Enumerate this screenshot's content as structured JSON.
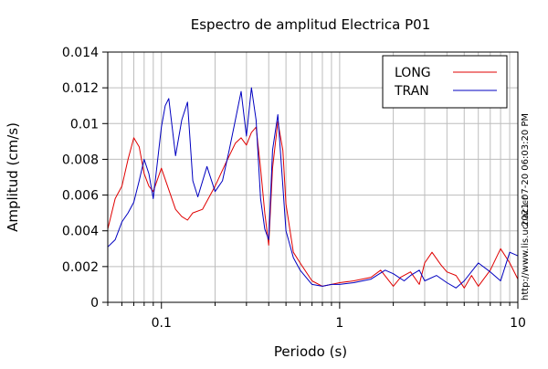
{
  "chart_data": {
    "type": "line",
    "title": "Espectro de amplitud Electrica P01",
    "xlabel": "Periodo (s)",
    "ylabel": "Amplitud (cm/s)",
    "x_scale": "log",
    "xlim": [
      0.05,
      10
    ],
    "ylim": [
      0,
      0.014
    ],
    "x_tick_labels": [
      "0.1",
      "1",
      "10"
    ],
    "y_tick_labels": [
      "0",
      "0.002",
      "0.004",
      "0.006",
      "0.008",
      "0.01",
      "0.012",
      "0.014"
    ],
    "grid": true,
    "legend_position": "top-right",
    "side_texts": [
      "2021-07-20 06:03:20 PM",
      "http://www.lis.ucr.ac.cr"
    ],
    "series": [
      {
        "name": "LONG",
        "color": "#e00000",
        "x": [
          0.05,
          0.055,
          0.06,
          0.065,
          0.07,
          0.075,
          0.08,
          0.085,
          0.09,
          0.1,
          0.11,
          0.12,
          0.13,
          0.14,
          0.15,
          0.17,
          0.2,
          0.23,
          0.26,
          0.28,
          0.3,
          0.32,
          0.34,
          0.36,
          0.38,
          0.4,
          0.42,
          0.45,
          0.48,
          0.5,
          0.55,
          0.6,
          0.7,
          0.8,
          0.9,
          1.0,
          1.2,
          1.5,
          1.7,
          2.0,
          2.2,
          2.5,
          2.8,
          3.0,
          3.3,
          3.7,
          4.0,
          4.5,
          5.0,
          5.5,
          6.0,
          7.0,
          8.0,
          9.0,
          10.0
        ],
        "y": [
          0.0041,
          0.0058,
          0.0065,
          0.008,
          0.0092,
          0.0087,
          0.0072,
          0.0065,
          0.0062,
          0.0075,
          0.0063,
          0.0052,
          0.0048,
          0.0046,
          0.005,
          0.0052,
          0.0065,
          0.0078,
          0.0089,
          0.0092,
          0.0088,
          0.0095,
          0.0098,
          0.0075,
          0.005,
          0.0032,
          0.0075,
          0.0101,
          0.0085,
          0.0055,
          0.0028,
          0.0022,
          0.0012,
          0.0009,
          0.001,
          0.0011,
          0.0012,
          0.0014,
          0.0018,
          0.0009,
          0.0014,
          0.0017,
          0.001,
          0.0022,
          0.0028,
          0.0021,
          0.0017,
          0.0015,
          0.0008,
          0.0015,
          0.0009,
          0.0018,
          0.003,
          0.0022,
          0.0013
        ]
      },
      {
        "name": "TRAN",
        "color": "#0000c0",
        "x": [
          0.05,
          0.055,
          0.06,
          0.065,
          0.07,
          0.075,
          0.08,
          0.085,
          0.09,
          0.1,
          0.105,
          0.11,
          0.12,
          0.13,
          0.14,
          0.15,
          0.16,
          0.18,
          0.2,
          0.22,
          0.24,
          0.26,
          0.28,
          0.3,
          0.32,
          0.34,
          0.36,
          0.38,
          0.4,
          0.42,
          0.45,
          0.48,
          0.5,
          0.55,
          0.6,
          0.7,
          0.8,
          0.9,
          1.0,
          1.2,
          1.5,
          1.8,
          2.0,
          2.3,
          2.5,
          2.8,
          3.0,
          3.5,
          4.0,
          4.5,
          5.0,
          6.0,
          7.0,
          8.0,
          9.0,
          10.0
        ],
        "y": [
          0.0031,
          0.0035,
          0.0045,
          0.005,
          0.0056,
          0.0068,
          0.008,
          0.0072,
          0.0058,
          0.0098,
          0.011,
          0.0114,
          0.0082,
          0.0102,
          0.0112,
          0.0068,
          0.0059,
          0.0076,
          0.0062,
          0.0068,
          0.0085,
          0.0102,
          0.0118,
          0.0093,
          0.012,
          0.0102,
          0.0058,
          0.0041,
          0.0035,
          0.0085,
          0.0105,
          0.0065,
          0.004,
          0.0025,
          0.0018,
          0.001,
          0.0009,
          0.001,
          0.001,
          0.0011,
          0.0013,
          0.0018,
          0.0016,
          0.0012,
          0.0015,
          0.0018,
          0.0012,
          0.0015,
          0.0011,
          0.0008,
          0.0012,
          0.0022,
          0.0017,
          0.0012,
          0.0028,
          0.0026
        ]
      }
    ]
  }
}
